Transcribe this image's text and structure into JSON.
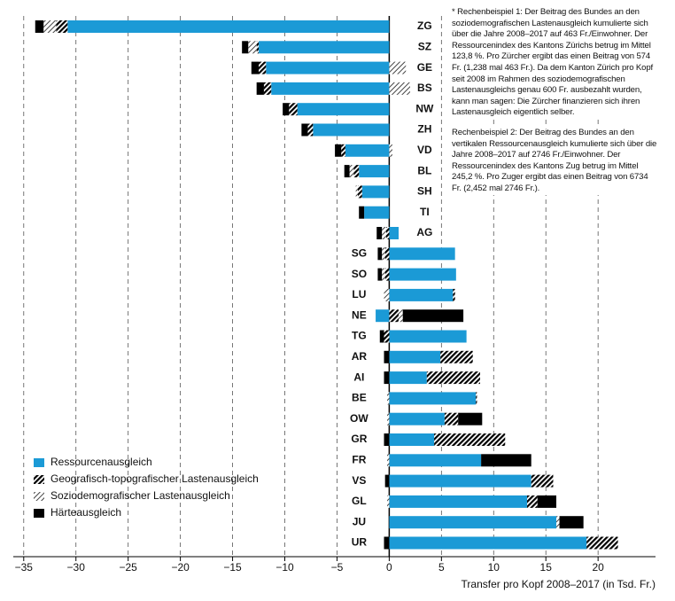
{
  "chart_data": {
    "type": "diverging-stacked-bar",
    "xlabel": "Transfer pro Kopf 2008–2017 (in Tsd. Fr.)",
    "categories": [
      "ZG",
      "SZ",
      "GE",
      "BS",
      "NW",
      "ZH",
      "VD",
      "BL",
      "SH",
      "TI",
      "AG",
      "SG",
      "SO",
      "LU",
      "NE",
      "TG",
      "AR",
      "AI",
      "BE",
      "OW",
      "GR",
      "FR",
      "VS",
      "GL",
      "JU",
      "UR"
    ],
    "series": [
      {
        "name": "Ressourcenausgleich",
        "color": "#1b9ad6",
        "pattern": "solid",
        "values": [
          -30.8,
          -12.5,
          -11.8,
          -11.3,
          -8.8,
          -7.3,
          -4.2,
          -2.9,
          -2.6,
          -2.4,
          0.9,
          6.3,
          6.4,
          6.1,
          -1.3,
          7.4,
          4.9,
          3.6,
          8.3,
          5.3,
          4.3,
          8.8,
          13.6,
          13.2,
          16.0,
          18.9
        ]
      },
      {
        "name": "Geografisch-topografischer Lastenausgleich",
        "color": "#000000",
        "pattern": "hatch",
        "values": [
          -1.1,
          -0.2,
          -0.7,
          -0.7,
          -0.8,
          -0.5,
          -0.4,
          -0.5,
          -0.4,
          null,
          -0.3,
          -0.4,
          -0.4,
          0.2,
          0.9,
          -0.5,
          3.1,
          5.1,
          0.1,
          1.3,
          6.8,
          null,
          2.1,
          1.0,
          null,
          3.0
        ]
      },
      {
        "name": "Soziodemografischer Lastenausgleich",
        "color": "#444444",
        "pattern": "light-hatch",
        "values": [
          -1.2,
          -0.8,
          1.6,
          2.0,
          null,
          null,
          0.3,
          -0.4,
          -0.2,
          null,
          -0.4,
          -0.3,
          -0.3,
          -0.5,
          0.4,
          null,
          null,
          null,
          -0.2,
          -0.2,
          null,
          -0.2,
          null,
          -0.2,
          0.3,
          null
        ]
      },
      {
        "name": "Härteausgleich",
        "color": "#000000",
        "pattern": "solid",
        "values": [
          -0.8,
          -0.6,
          -0.7,
          -0.7,
          -0.6,
          -0.6,
          -0.6,
          -0.5,
          null,
          -0.5,
          -0.5,
          -0.4,
          -0.4,
          null,
          5.8,
          -0.4,
          -0.5,
          -0.5,
          null,
          2.3,
          -0.5,
          4.8,
          -0.4,
          1.8,
          2.3,
          -0.5
        ]
      }
    ],
    "xlim": [
      -36,
      25.5
    ],
    "xticks": [
      {
        "value": -35,
        "label": "−35"
      },
      {
        "value": -30,
        "label": "−30"
      },
      {
        "value": -25,
        "label": "−25"
      },
      {
        "value": -20,
        "label": "−20"
      },
      {
        "value": -15,
        "label": "−15"
      },
      {
        "value": -10,
        "label": "−10"
      },
      {
        "value": -5,
        "label": "−5"
      },
      0,
      5,
      10,
      15,
      20
    ],
    "grid": true,
    "legend": "bottom-left",
    "notes": [
      "* Rechenbeispiel 1: Der Beitrag des Bundes an den soziodemografischen Lastenausgleich kumulierte sich über die Jahre 2008–2017 auf 463 Fr./Einwohner. Der Ressourcenindex des Kantons Zürichs betrug im Mittel 123,8 %. Pro Zürcher ergibt das einen Beitrag von 574 Fr. (1,238 mal 463 Fr.). Da dem Kanton Zürich pro Kopf seit 2008 im Rahmen des soziodemografischen Lastenausgleichs genau 600 Fr. ausbezahlt wurden, kann man sagen: Die Zürcher finanzieren sich ihren Lastenausgleich eigentlich selber.",
      "Rechenbeispiel 2: Der Beitrag des Bundes an den vertikalen Ressourcenausgleich kumulierte sich über die Jahre 2008–2017 auf 2746 Fr./Einwohner. Der Ressourcenindex des Kantons Zug betrug im Mittel 245,2 %. Pro Zuger ergibt das einen Beitrag von 6734 Fr. (2,452 mal 2746 Fr.)."
    ]
  }
}
